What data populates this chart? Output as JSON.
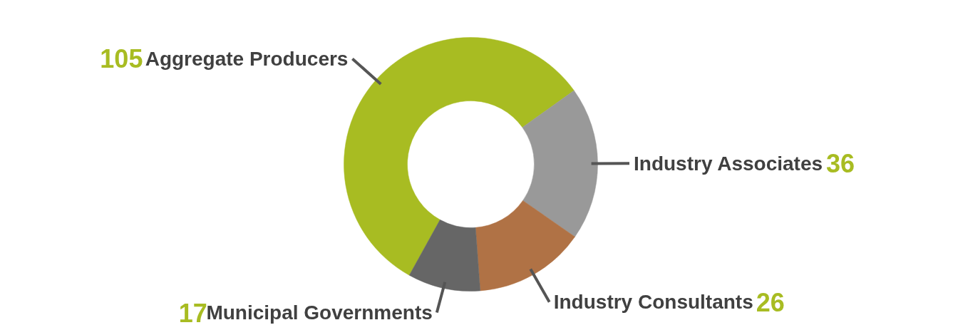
{
  "chart_data": {
    "type": "donut",
    "categories": [
      "Aggregate Producers",
      "Industry Associates",
      "Industry Consultants",
      "Municipal Governments"
    ],
    "values": [
      105,
      36,
      26,
      17
    ],
    "colors": [
      "#a8bc22",
      "#999999",
      "#b07245",
      "#666666"
    ],
    "data_labels": true
  }
}
